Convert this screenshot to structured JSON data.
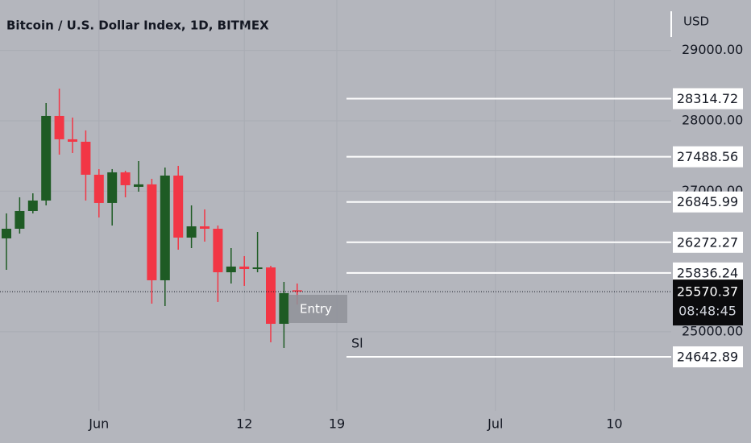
{
  "chart_data": {
    "type": "candlestick",
    "title": "Bitcoin / U.S. Dollar Index, 1D, BITMEX",
    "currency": "USD",
    "categories": [
      null,
      null,
      null,
      null,
      null,
      null,
      null,
      "Jun",
      null,
      null,
      null,
      null,
      null,
      null,
      null,
      null,
      null,
      null,
      "12",
      null,
      null,
      null,
      null,
      null,
      null,
      "19",
      null,
      null,
      null,
      null,
      null,
      null,
      null,
      null,
      null,
      null,
      null,
      "Jul",
      null,
      null,
      null,
      null,
      null,
      null,
      null,
      null,
      "10",
      null,
      null,
      null
    ],
    "open": [
      26328,
      26465,
      26717,
      26866,
      28069,
      27737,
      27702,
      27233,
      26832,
      27267,
      27061,
      27096,
      25732,
      27221,
      26339,
      26499,
      26465,
      25846,
      25927,
      25892,
      25915,
      25113,
      25590,
      null,
      null,
      null,
      null,
      null,
      null,
      null,
      null,
      null,
      null,
      null,
      null,
      null,
      null,
      null,
      null,
      null,
      null,
      null,
      null,
      null,
      null,
      null,
      null,
      null,
      null,
      null
    ],
    "high": [
      26683,
      26912,
      26969,
      28252,
      28458,
      28046,
      27863,
      27313,
      27313,
      27290,
      27427,
      27175,
      27336,
      27359,
      26797,
      26740,
      26511,
      26190,
      26076,
      26419,
      25938,
      25709,
      25686,
      null,
      null,
      null,
      null,
      null,
      null,
      null,
      null,
      null,
      null,
      null,
      null,
      null,
      null,
      null,
      null,
      null,
      null,
      null,
      null,
      null,
      null,
      null,
      null,
      null,
      null,
      null
    ],
    "low": [
      25881,
      26396,
      26683,
      26797,
      27519,
      27542,
      26866,
      26625,
      26511,
      26912,
      26992,
      25400,
      25365,
      26167,
      26190,
      26282,
      25423,
      25686,
      25652,
      25846,
      24850,
      24770,
      25388,
      null,
      null,
      null,
      null,
      null,
      null,
      null,
      null,
      null,
      null,
      null,
      null,
      null,
      null,
      null,
      null,
      null,
      null,
      null,
      null,
      null,
      null,
      null,
      null,
      null,
      null,
      null
    ],
    "close": [
      26465,
      26717,
      26866,
      28069,
      27737,
      27702,
      27233,
      26832,
      27267,
      27084,
      27096,
      25732,
      27221,
      26339,
      26499,
      26465,
      25846,
      25927,
      25892,
      25915,
      25113,
      25549,
      25570.37,
      null,
      null,
      null,
      null,
      null,
      null,
      null,
      null,
      null,
      null,
      null,
      null,
      null,
      null,
      null,
      null,
      null,
      null,
      null,
      null,
      null,
      null,
      null,
      null,
      null,
      null,
      null
    ],
    "countdown": "08:48:45",
    "ylim": [
      23876,
      29718
    ],
    "yticks": [
      {
        "value": 29000,
        "label": "29000.00"
      },
      {
        "value": 28000,
        "label": "28000.00"
      },
      {
        "value": 27000,
        "label": "27000.00"
      },
      {
        "value": 25000,
        "label": "25000.00"
      }
    ],
    "levels": [
      28314.72,
      27488.56,
      26845.99,
      26272.27,
      25836.24,
      24642.89
    ],
    "annotations": [
      "Entry",
      "Sl"
    ],
    "up_color": "#1e5b24",
    "down_color": "#f23645",
    "grid": true
  }
}
